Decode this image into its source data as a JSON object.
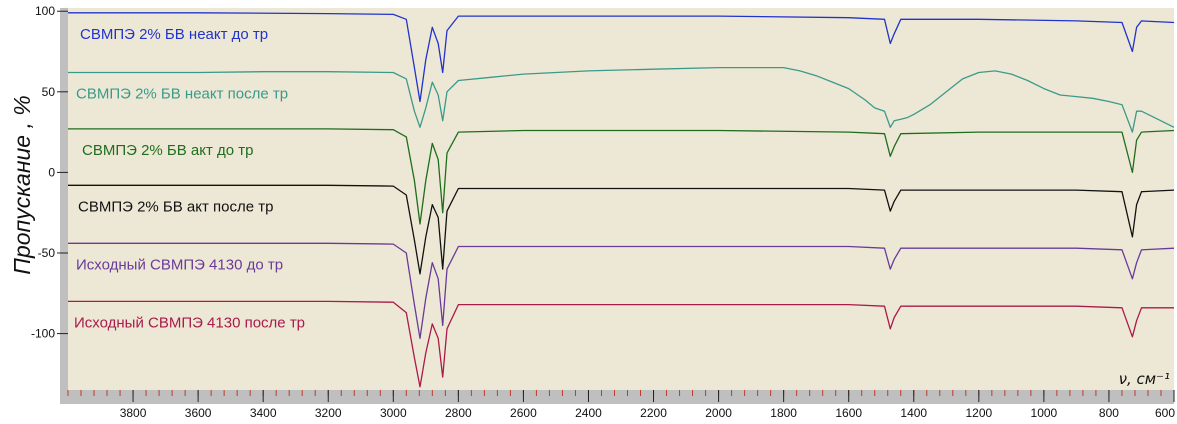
{
  "chart_data": {
    "type": "line",
    "ylabel": "Пропускание , %",
    "xlabel": "ν, см⁻¹",
    "xlim": [
      4000,
      600
    ],
    "ylim": [
      -135,
      102
    ],
    "x_ticks": [
      3800,
      3600,
      3400,
      3200,
      3000,
      2800,
      2600,
      2400,
      2200,
      2000,
      1800,
      1600,
      1400,
      1200,
      1000,
      800,
      600
    ],
    "y_ticks": [
      100,
      50,
      0,
      -50,
      -100
    ],
    "background": "#ede8d5",
    "legend": "inline-labels-left",
    "series": [
      {
        "name": "СВМПЭ 2% БВ неакт до тр",
        "color": "#2233cc",
        "points": [
          [
            4000,
            99
          ],
          [
            3600,
            99
          ],
          [
            3200,
            98.5
          ],
          [
            3000,
            98
          ],
          [
            2960,
            95
          ],
          [
            2935,
            65
          ],
          [
            2918,
            44
          ],
          [
            2900,
            70
          ],
          [
            2880,
            90
          ],
          [
            2862,
            80
          ],
          [
            2848,
            62
          ],
          [
            2835,
            88
          ],
          [
            2800,
            97
          ],
          [
            2400,
            97
          ],
          [
            2000,
            97
          ],
          [
            1600,
            96
          ],
          [
            1490,
            95
          ],
          [
            1472,
            80
          ],
          [
            1460,
            86
          ],
          [
            1440,
            95
          ],
          [
            1200,
            95
          ],
          [
            900,
            94
          ],
          [
            760,
            93
          ],
          [
            728,
            75
          ],
          [
            715,
            90
          ],
          [
            700,
            94
          ],
          [
            600,
            93
          ]
        ]
      },
      {
        "name": "СВМПЭ 2% БВ неакт после тр",
        "color": "#3a9a8a",
        "points": [
          [
            4000,
            62
          ],
          [
            3800,
            62
          ],
          [
            3600,
            62
          ],
          [
            3400,
            62.5
          ],
          [
            3200,
            62.5
          ],
          [
            3000,
            62
          ],
          [
            2960,
            58
          ],
          [
            2935,
            38
          ],
          [
            2918,
            28
          ],
          [
            2900,
            40
          ],
          [
            2880,
            56
          ],
          [
            2862,
            48
          ],
          [
            2848,
            32
          ],
          [
            2835,
            50
          ],
          [
            2800,
            57
          ],
          [
            2700,
            59
          ],
          [
            2600,
            61
          ],
          [
            2400,
            63
          ],
          [
            2200,
            64
          ],
          [
            2000,
            65
          ],
          [
            1900,
            65
          ],
          [
            1800,
            65
          ],
          [
            1750,
            63
          ],
          [
            1700,
            60
          ],
          [
            1650,
            56
          ],
          [
            1600,
            52
          ],
          [
            1550,
            45
          ],
          [
            1520,
            40
          ],
          [
            1490,
            38
          ],
          [
            1472,
            28
          ],
          [
            1460,
            32
          ],
          [
            1440,
            33
          ],
          [
            1420,
            34
          ],
          [
            1400,
            36
          ],
          [
            1350,
            42
          ],
          [
            1300,
            50
          ],
          [
            1250,
            58
          ],
          [
            1200,
            62
          ],
          [
            1150,
            63
          ],
          [
            1100,
            61
          ],
          [
            1050,
            57
          ],
          [
            1000,
            52
          ],
          [
            950,
            48
          ],
          [
            900,
            47
          ],
          [
            850,
            46
          ],
          [
            800,
            44
          ],
          [
            760,
            42
          ],
          [
            728,
            25
          ],
          [
            715,
            38
          ],
          [
            700,
            38
          ],
          [
            650,
            33
          ],
          [
            600,
            28
          ]
        ]
      },
      {
        "name": "СВМПЭ 2% БВ акт до тр",
        "color": "#1e6e1e",
        "points": [
          [
            4000,
            27
          ],
          [
            3600,
            27
          ],
          [
            3200,
            27
          ],
          [
            3000,
            26.5
          ],
          [
            2960,
            22
          ],
          [
            2935,
            -5
          ],
          [
            2918,
            -32
          ],
          [
            2900,
            -5
          ],
          [
            2880,
            18
          ],
          [
            2862,
            8
          ],
          [
            2848,
            -25
          ],
          [
            2835,
            12
          ],
          [
            2800,
            25
          ],
          [
            2600,
            26
          ],
          [
            2400,
            26
          ],
          [
            2000,
            26
          ],
          [
            1600,
            25
          ],
          [
            1490,
            24
          ],
          [
            1472,
            10
          ],
          [
            1460,
            16
          ],
          [
            1440,
            24
          ],
          [
            1200,
            25
          ],
          [
            900,
            25
          ],
          [
            760,
            25
          ],
          [
            728,
            0
          ],
          [
            715,
            20
          ],
          [
            700,
            25
          ],
          [
            600,
            26
          ]
        ]
      },
      {
        "name": "СВМПЭ 2% БВ акт после тр",
        "color": "#111111",
        "points": [
          [
            4000,
            -8
          ],
          [
            3600,
            -8
          ],
          [
            3200,
            -8
          ],
          [
            3000,
            -8.5
          ],
          [
            2960,
            -14
          ],
          [
            2935,
            -42
          ],
          [
            2918,
            -63
          ],
          [
            2900,
            -40
          ],
          [
            2880,
            -20
          ],
          [
            2862,
            -28
          ],
          [
            2848,
            -60
          ],
          [
            2835,
            -24
          ],
          [
            2800,
            -10
          ],
          [
            2400,
            -10
          ],
          [
            2000,
            -10
          ],
          [
            1600,
            -10
          ],
          [
            1490,
            -11
          ],
          [
            1472,
            -24
          ],
          [
            1460,
            -18
          ],
          [
            1440,
            -11
          ],
          [
            1200,
            -11
          ],
          [
            900,
            -11
          ],
          [
            760,
            -12
          ],
          [
            728,
            -40
          ],
          [
            715,
            -20
          ],
          [
            700,
            -12
          ],
          [
            600,
            -11
          ]
        ]
      },
      {
        "name": "Исходный СВМПЭ 4130 до тр",
        "color": "#6a3a9a",
        "points": [
          [
            4000,
            -44
          ],
          [
            3600,
            -44
          ],
          [
            3200,
            -44
          ],
          [
            3000,
            -44.5
          ],
          [
            2960,
            -50
          ],
          [
            2935,
            -82
          ],
          [
            2918,
            -103
          ],
          [
            2900,
            -78
          ],
          [
            2880,
            -56
          ],
          [
            2862,
            -66
          ],
          [
            2848,
            -95
          ],
          [
            2835,
            -60
          ],
          [
            2800,
            -46
          ],
          [
            2400,
            -46
          ],
          [
            2000,
            -46
          ],
          [
            1600,
            -46
          ],
          [
            1490,
            -47
          ],
          [
            1472,
            -60
          ],
          [
            1460,
            -54
          ],
          [
            1440,
            -47
          ],
          [
            1200,
            -47
          ],
          [
            900,
            -47
          ],
          [
            760,
            -48
          ],
          [
            728,
            -66
          ],
          [
            715,
            -56
          ],
          [
            700,
            -48
          ],
          [
            600,
            -47
          ]
        ]
      },
      {
        "name": "Исходный СВМПЭ 4130 после тр",
        "color": "#aa1a4a",
        "points": [
          [
            4000,
            -80
          ],
          [
            3600,
            -80
          ],
          [
            3200,
            -80
          ],
          [
            3000,
            -80.5
          ],
          [
            2960,
            -87
          ],
          [
            2935,
            -115
          ],
          [
            2918,
            -133
          ],
          [
            2900,
            -112
          ],
          [
            2880,
            -94
          ],
          [
            2862,
            -103
          ],
          [
            2848,
            -127
          ],
          [
            2835,
            -97
          ],
          [
            2800,
            -82
          ],
          [
            2400,
            -82
          ],
          [
            2000,
            -82
          ],
          [
            1600,
            -82
          ],
          [
            1490,
            -83
          ],
          [
            1472,
            -97
          ],
          [
            1460,
            -90
          ],
          [
            1440,
            -83
          ],
          [
            1200,
            -83
          ],
          [
            900,
            -83
          ],
          [
            760,
            -84
          ],
          [
            728,
            -102
          ],
          [
            715,
            -92
          ],
          [
            700,
            -84
          ],
          [
            600,
            -84
          ]
        ]
      }
    ]
  }
}
